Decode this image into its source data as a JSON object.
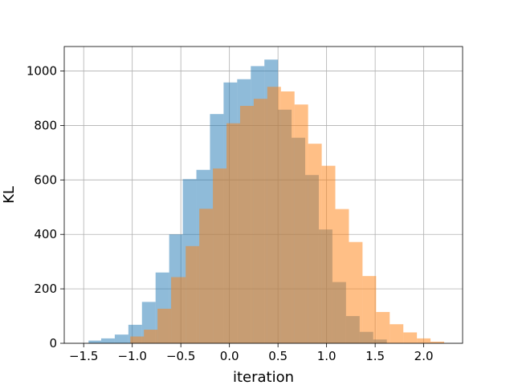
{
  "chart_data": {
    "type": "bar",
    "subtype": "overlapping-histogram",
    "title": "",
    "xlabel": "iteration",
    "ylabel": "KL",
    "xlim": [
      -1.7,
      2.4
    ],
    "ylim": [
      0,
      1090
    ],
    "xticks": [
      -1.5,
      -1.0,
      -0.5,
      0.0,
      0.5,
      1.0,
      1.5,
      2.0
    ],
    "xtick_labels": [
      "−1.5",
      "−1.0",
      "−0.5",
      "0.0",
      "0.5",
      "1.0",
      "1.5",
      "2.0"
    ],
    "yticks": [
      0,
      200,
      400,
      600,
      800,
      1000
    ],
    "ytick_labels": [
      "0",
      "200",
      "400",
      "600",
      "800",
      "1000"
    ],
    "grid": true,
    "legend": "none",
    "series": [
      {
        "color": "#1f77b4",
        "opacity": 0.5,
        "bins": [
          {
            "x0": -1.45,
            "x1": -1.32,
            "value": 10
          },
          {
            "x0": -1.32,
            "x1": -1.18,
            "value": 18
          },
          {
            "x0": -1.18,
            "x1": -1.04,
            "value": 32
          },
          {
            "x0": -1.04,
            "x1": -0.9,
            "value": 68
          },
          {
            "x0": -0.9,
            "x1": -0.76,
            "value": 152
          },
          {
            "x0": -0.76,
            "x1": -0.62,
            "value": 260
          },
          {
            "x0": -0.62,
            "x1": -0.48,
            "value": 400
          },
          {
            "x0": -0.48,
            "x1": -0.34,
            "value": 603
          },
          {
            "x0": -0.34,
            "x1": -0.2,
            "value": 637
          },
          {
            "x0": -0.2,
            "x1": -0.06,
            "value": 842
          },
          {
            "x0": -0.06,
            "x1": 0.08,
            "value": 958
          },
          {
            "x0": 0.08,
            "x1": 0.22,
            "value": 970
          },
          {
            "x0": 0.22,
            "x1": 0.36,
            "value": 1018
          },
          {
            "x0": 0.36,
            "x1": 0.5,
            "value": 1042
          },
          {
            "x0": 0.5,
            "x1": 0.64,
            "value": 858
          },
          {
            "x0": 0.64,
            "x1": 0.78,
            "value": 755
          },
          {
            "x0": 0.78,
            "x1": 0.92,
            "value": 618
          },
          {
            "x0": 0.92,
            "x1": 1.06,
            "value": 418
          },
          {
            "x0": 1.06,
            "x1": 1.2,
            "value": 225
          },
          {
            "x0": 1.2,
            "x1": 1.34,
            "value": 100
          },
          {
            "x0": 1.34,
            "x1": 1.48,
            "value": 42
          },
          {
            "x0": 1.48,
            "x1": 1.62,
            "value": 14
          }
        ]
      },
      {
        "color": "#ff7f0e",
        "opacity": 0.5,
        "bins": [
          {
            "x0": -1.02,
            "x1": -0.88,
            "value": 25
          },
          {
            "x0": -0.88,
            "x1": -0.74,
            "value": 50
          },
          {
            "x0": -0.74,
            "x1": -0.6,
            "value": 127
          },
          {
            "x0": -0.6,
            "x1": -0.45,
            "value": 243
          },
          {
            "x0": -0.45,
            "x1": -0.31,
            "value": 357
          },
          {
            "x0": -0.31,
            "x1": -0.17,
            "value": 494
          },
          {
            "x0": -0.17,
            "x1": -0.03,
            "value": 642
          },
          {
            "x0": -0.03,
            "x1": 0.11,
            "value": 808
          },
          {
            "x0": 0.11,
            "x1": 0.25,
            "value": 872
          },
          {
            "x0": 0.25,
            "x1": 0.39,
            "value": 898
          },
          {
            "x0": 0.39,
            "x1": 0.53,
            "value": 942
          },
          {
            "x0": 0.53,
            "x1": 0.67,
            "value": 925
          },
          {
            "x0": 0.67,
            "x1": 0.81,
            "value": 877
          },
          {
            "x0": 0.81,
            "x1": 0.95,
            "value": 733
          },
          {
            "x0": 0.95,
            "x1": 1.09,
            "value": 652
          },
          {
            "x0": 1.09,
            "x1": 1.23,
            "value": 493
          },
          {
            "x0": 1.23,
            "x1": 1.37,
            "value": 372
          },
          {
            "x0": 1.37,
            "x1": 1.51,
            "value": 247
          },
          {
            "x0": 1.51,
            "x1": 1.65,
            "value": 115
          },
          {
            "x0": 1.65,
            "x1": 1.79,
            "value": 70
          },
          {
            "x0": 1.79,
            "x1": 1.93,
            "value": 40
          },
          {
            "x0": 1.93,
            "x1": 2.07,
            "value": 18
          },
          {
            "x0": 2.07,
            "x1": 2.21,
            "value": 6
          }
        ]
      }
    ]
  }
}
